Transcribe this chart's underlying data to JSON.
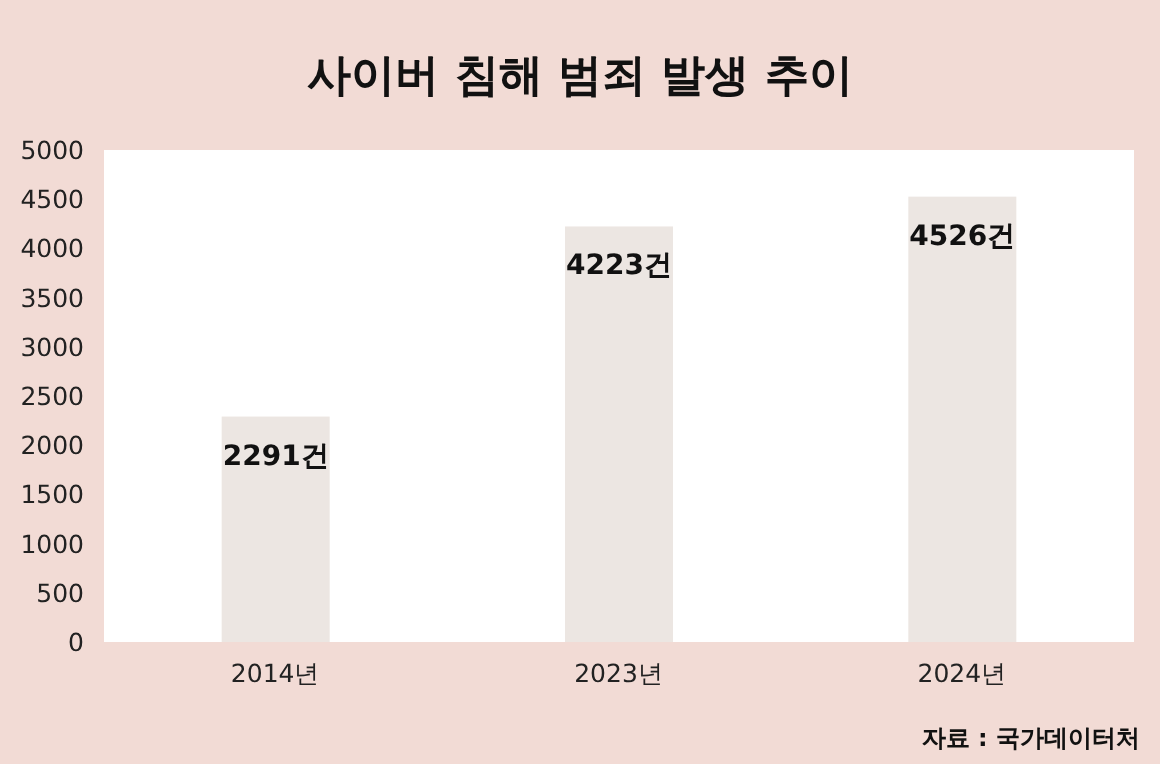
{
  "chart_data": {
    "type": "bar",
    "title": "사이버 침해 범죄 발생 추이",
    "categories": [
      "2014년",
      "2023년",
      "2024년"
    ],
    "values": [
      2291,
      4223,
      4526
    ],
    "value_labels": [
      "2291건",
      "4223건",
      "4526건"
    ],
    "color": "#ece6e2",
    "ylim": [
      0,
      5000
    ],
    "yticks": [
      0,
      500,
      1000,
      1500,
      2000,
      2500,
      3000,
      3500,
      4000,
      4500,
      5000
    ],
    "grid": false,
    "annotations": [
      "자료 : 국가데이터처"
    ]
  }
}
